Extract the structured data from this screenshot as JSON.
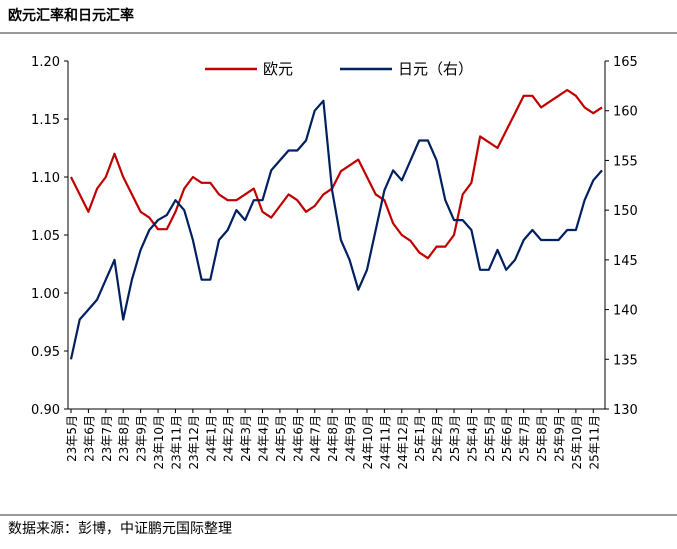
{
  "chart_data": {
    "type": "line",
    "title": "欧元汇率和日元汇率",
    "source": "数据来源：彭博，中证鹏元国际整理",
    "categories": [
      "23年5月",
      null,
      "23年6月",
      null,
      "23年7月",
      null,
      "23年8月",
      null,
      "23年9月",
      null,
      "23年10月",
      null,
      "23年11月",
      null,
      "23年12月",
      null,
      "24年1月",
      null,
      "24年2月",
      null,
      "24年3月",
      null,
      "24年4月",
      null,
      "24年5月",
      null,
      "24年6月",
      null,
      "24年7月",
      null,
      "24年8月",
      null,
      "24年9月",
      null,
      "24年10月",
      null,
      "24年11月",
      null,
      "24年12月",
      null,
      "25年1月",
      null,
      "25年2月",
      null,
      "25年3月",
      null,
      "25年4月",
      null,
      "25年5月",
      null,
      "25年6月",
      null,
      "25年7月",
      null,
      "25年8月",
      null,
      "25年9月",
      null,
      "25年10月",
      null,
      "25年11月",
      null
    ],
    "series": [
      {
        "name": "欧元",
        "color": "#c00000",
        "values": [
          1.1,
          1.085,
          1.07,
          1.09,
          1.1,
          1.12,
          1.1,
          1.085,
          1.07,
          1.065,
          1.055,
          1.055,
          1.07,
          1.09,
          1.1,
          1.095,
          1.095,
          1.085,
          1.08,
          1.08,
          1.085,
          1.09,
          1.07,
          1.065,
          1.075,
          1.085,
          1.08,
          1.07,
          1.075,
          1.085,
          1.09,
          1.105,
          1.11,
          1.115,
          1.1,
          1.085,
          1.08,
          1.06,
          1.05,
          1.045,
          1.035,
          1.03,
          1.04,
          1.04,
          1.05,
          1.085,
          1.095,
          1.135,
          1.13,
          1.125,
          1.14,
          1.155,
          1.17,
          1.17,
          1.16,
          1.165,
          1.17,
          1.175,
          1.17,
          1.16,
          1.155,
          1.16
        ]
      },
      {
        "name": "日元（右）",
        "color": "#002060",
        "axis": "y2",
        "values": [
          135,
          139,
          140,
          141,
          143,
          145,
          139,
          143,
          146,
          148,
          149,
          149.5,
          151,
          150,
          147,
          143,
          143,
          147,
          148,
          150,
          149,
          151,
          151,
          154,
          155,
          156,
          156,
          157,
          160,
          161,
          152,
          147,
          145,
          142,
          144,
          148,
          152,
          154,
          153,
          155,
          157,
          157,
          155,
          151,
          149,
          149,
          148,
          144,
          144,
          146,
          144,
          145,
          147,
          148,
          147,
          147,
          147,
          148,
          148,
          151,
          153,
          154
        ]
      }
    ],
    "ylim": [
      0.9,
      1.2
    ],
    "yticks": [
      {
        "value": 0.9,
        "label": "0.90"
      },
      {
        "value": 0.95,
        "label": "0.95"
      },
      {
        "value": 1.0,
        "label": "1.00"
      },
      {
        "value": 1.05,
        "label": "1.05"
      },
      {
        "value": 1.1,
        "label": "1.10"
      },
      {
        "value": 1.15,
        "label": "1.15"
      },
      {
        "value": 1.2,
        "label": "1.20"
      }
    ],
    "y2lim": [
      130,
      165
    ],
    "y2ticks": [
      130,
      135,
      140,
      145,
      150,
      155,
      160,
      165
    ],
    "legend": "top"
  }
}
